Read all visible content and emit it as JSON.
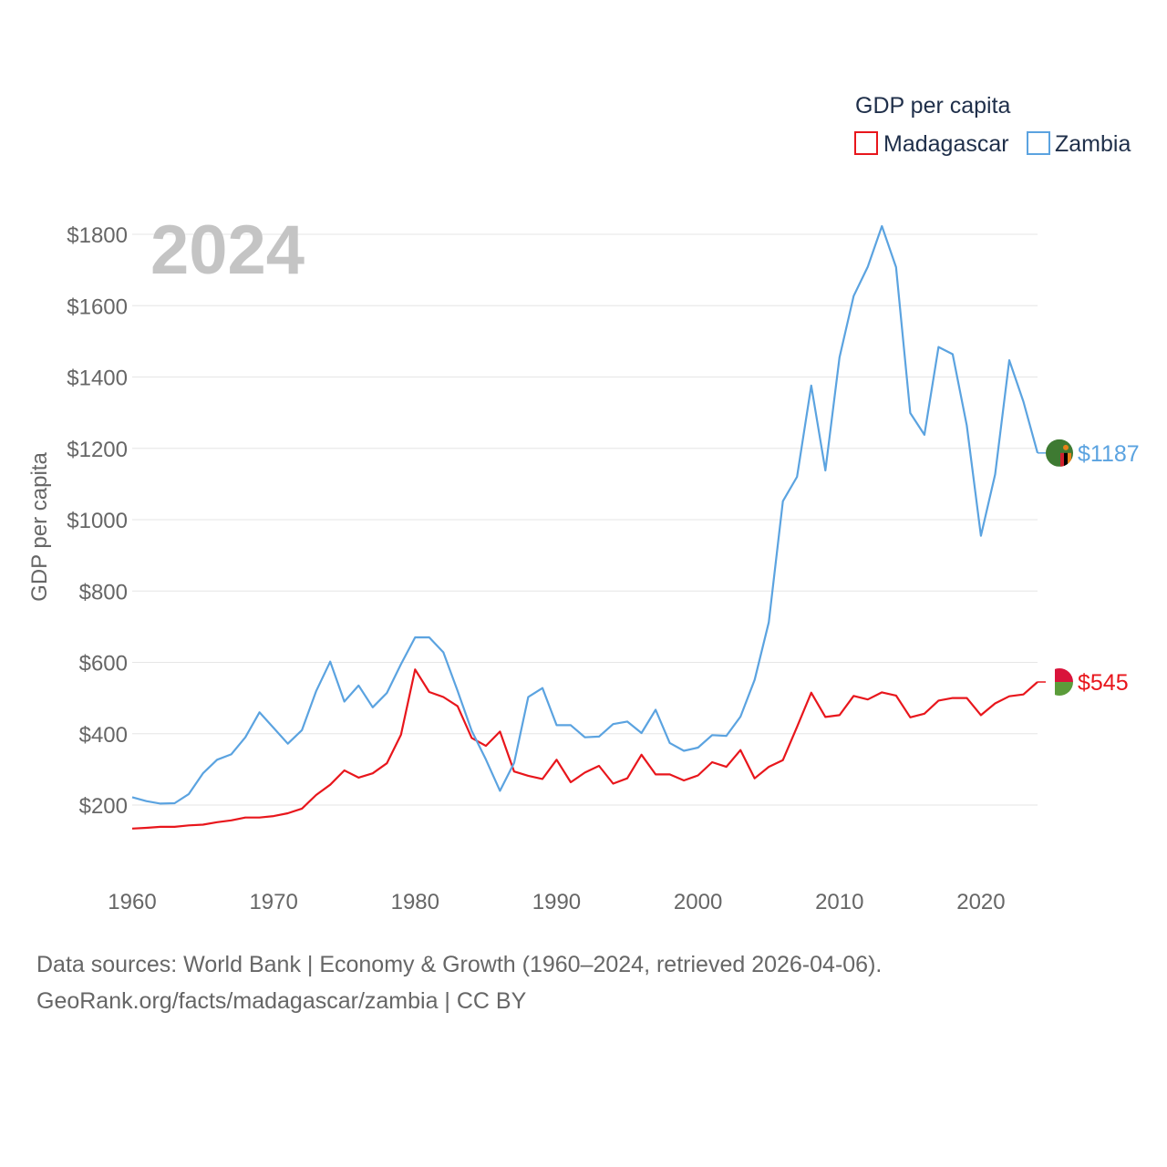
{
  "footer": {
    "line1": "Data sources: World Bank | Economy & Growth (1960–2024, retrieved 2026-04-06).",
    "line2": "GeoRank.org/facts/madagascar/zambia | CC BY"
  },
  "chart_data": {
    "type": "line",
    "title": "GDP per capita",
    "year_label": "2024",
    "xlabel": "",
    "ylabel": "GDP per capita",
    "xlim": [
      1960,
      2024
    ],
    "ylim": [
      0,
      1900
    ],
    "x_ticks": [
      1960,
      1970,
      1980,
      1990,
      2000,
      2010,
      2020
    ],
    "x_tick_labels": [
      "1960",
      "1970",
      "1980",
      "1990",
      "2000",
      "2010",
      "2020"
    ],
    "y_ticks": [
      200,
      400,
      600,
      800,
      1000,
      1200,
      1400,
      1600,
      1800
    ],
    "y_tick_labels": [
      "$200",
      "$400",
      "$600",
      "$800",
      "$1000",
      "$1200",
      "$1400",
      "$1600",
      "$1800"
    ],
    "legend_position": "top-right",
    "grid": true,
    "x": [
      1960,
      1961,
      1962,
      1963,
      1964,
      1965,
      1966,
      1967,
      1968,
      1969,
      1970,
      1971,
      1972,
      1973,
      1974,
      1975,
      1976,
      1977,
      1978,
      1979,
      1980,
      1981,
      1982,
      1983,
      1984,
      1985,
      1986,
      1987,
      1988,
      1989,
      1990,
      1991,
      1992,
      1993,
      1994,
      1995,
      1996,
      1997,
      1998,
      1999,
      2000,
      2001,
      2002,
      2003,
      2004,
      2005,
      2006,
      2007,
      2008,
      2009,
      2010,
      2011,
      2012,
      2013,
      2014,
      2015,
      2016,
      2017,
      2018,
      2019,
      2020,
      2021,
      2022,
      2023,
      2024
    ],
    "series": [
      {
        "name": "Madagascar",
        "color": "#e8161c",
        "end_label": "$545",
        "flag_colors": [
          "#ffffff",
          "#d9143b",
          "#5b9c3a"
        ],
        "values": [
          134,
          136,
          139,
          139,
          143,
          145,
          152,
          157,
          165,
          165,
          169,
          177,
          190,
          228,
          257,
          297,
          277,
          289,
          317,
          397,
          580,
          517,
          503,
          477,
          388,
          366,
          406,
          294,
          282,
          273,
          327,
          264,
          291,
          310,
          260,
          275,
          341,
          286,
          286,
          269,
          283,
          320,
          307,
          354,
          275,
          307,
          326,
          419,
          515,
          447,
          452,
          506,
          496,
          516,
          507,
          446,
          456,
          493,
          500,
          500,
          452,
          485,
          505,
          510,
          545
        ]
      },
      {
        "name": "Zambia",
        "color": "#5ba3e0",
        "end_label": "$1187",
        "flag_colors": [
          "#3e7a32",
          "#e8821a",
          "#000000",
          "#d0202e"
        ],
        "values": [
          222,
          211,
          204,
          205,
          231,
          289,
          327,
          342,
          390,
          460,
          416,
          372,
          410,
          519,
          602,
          490,
          535,
          474,
          514,
          595,
          670,
          670,
          628,
          520,
          408,
          328,
          240,
          318,
          503,
          528,
          424,
          424,
          390,
          392,
          427,
          434,
          402,
          467,
          374,
          352,
          361,
          396,
          394,
          448,
          551,
          712,
          1052,
          1120,
          1376,
          1138,
          1455,
          1627,
          1709,
          1823,
          1708,
          1299,
          1238,
          1484,
          1464,
          1264,
          955,
          1127,
          1447,
          1331,
          1187
        ]
      }
    ]
  }
}
